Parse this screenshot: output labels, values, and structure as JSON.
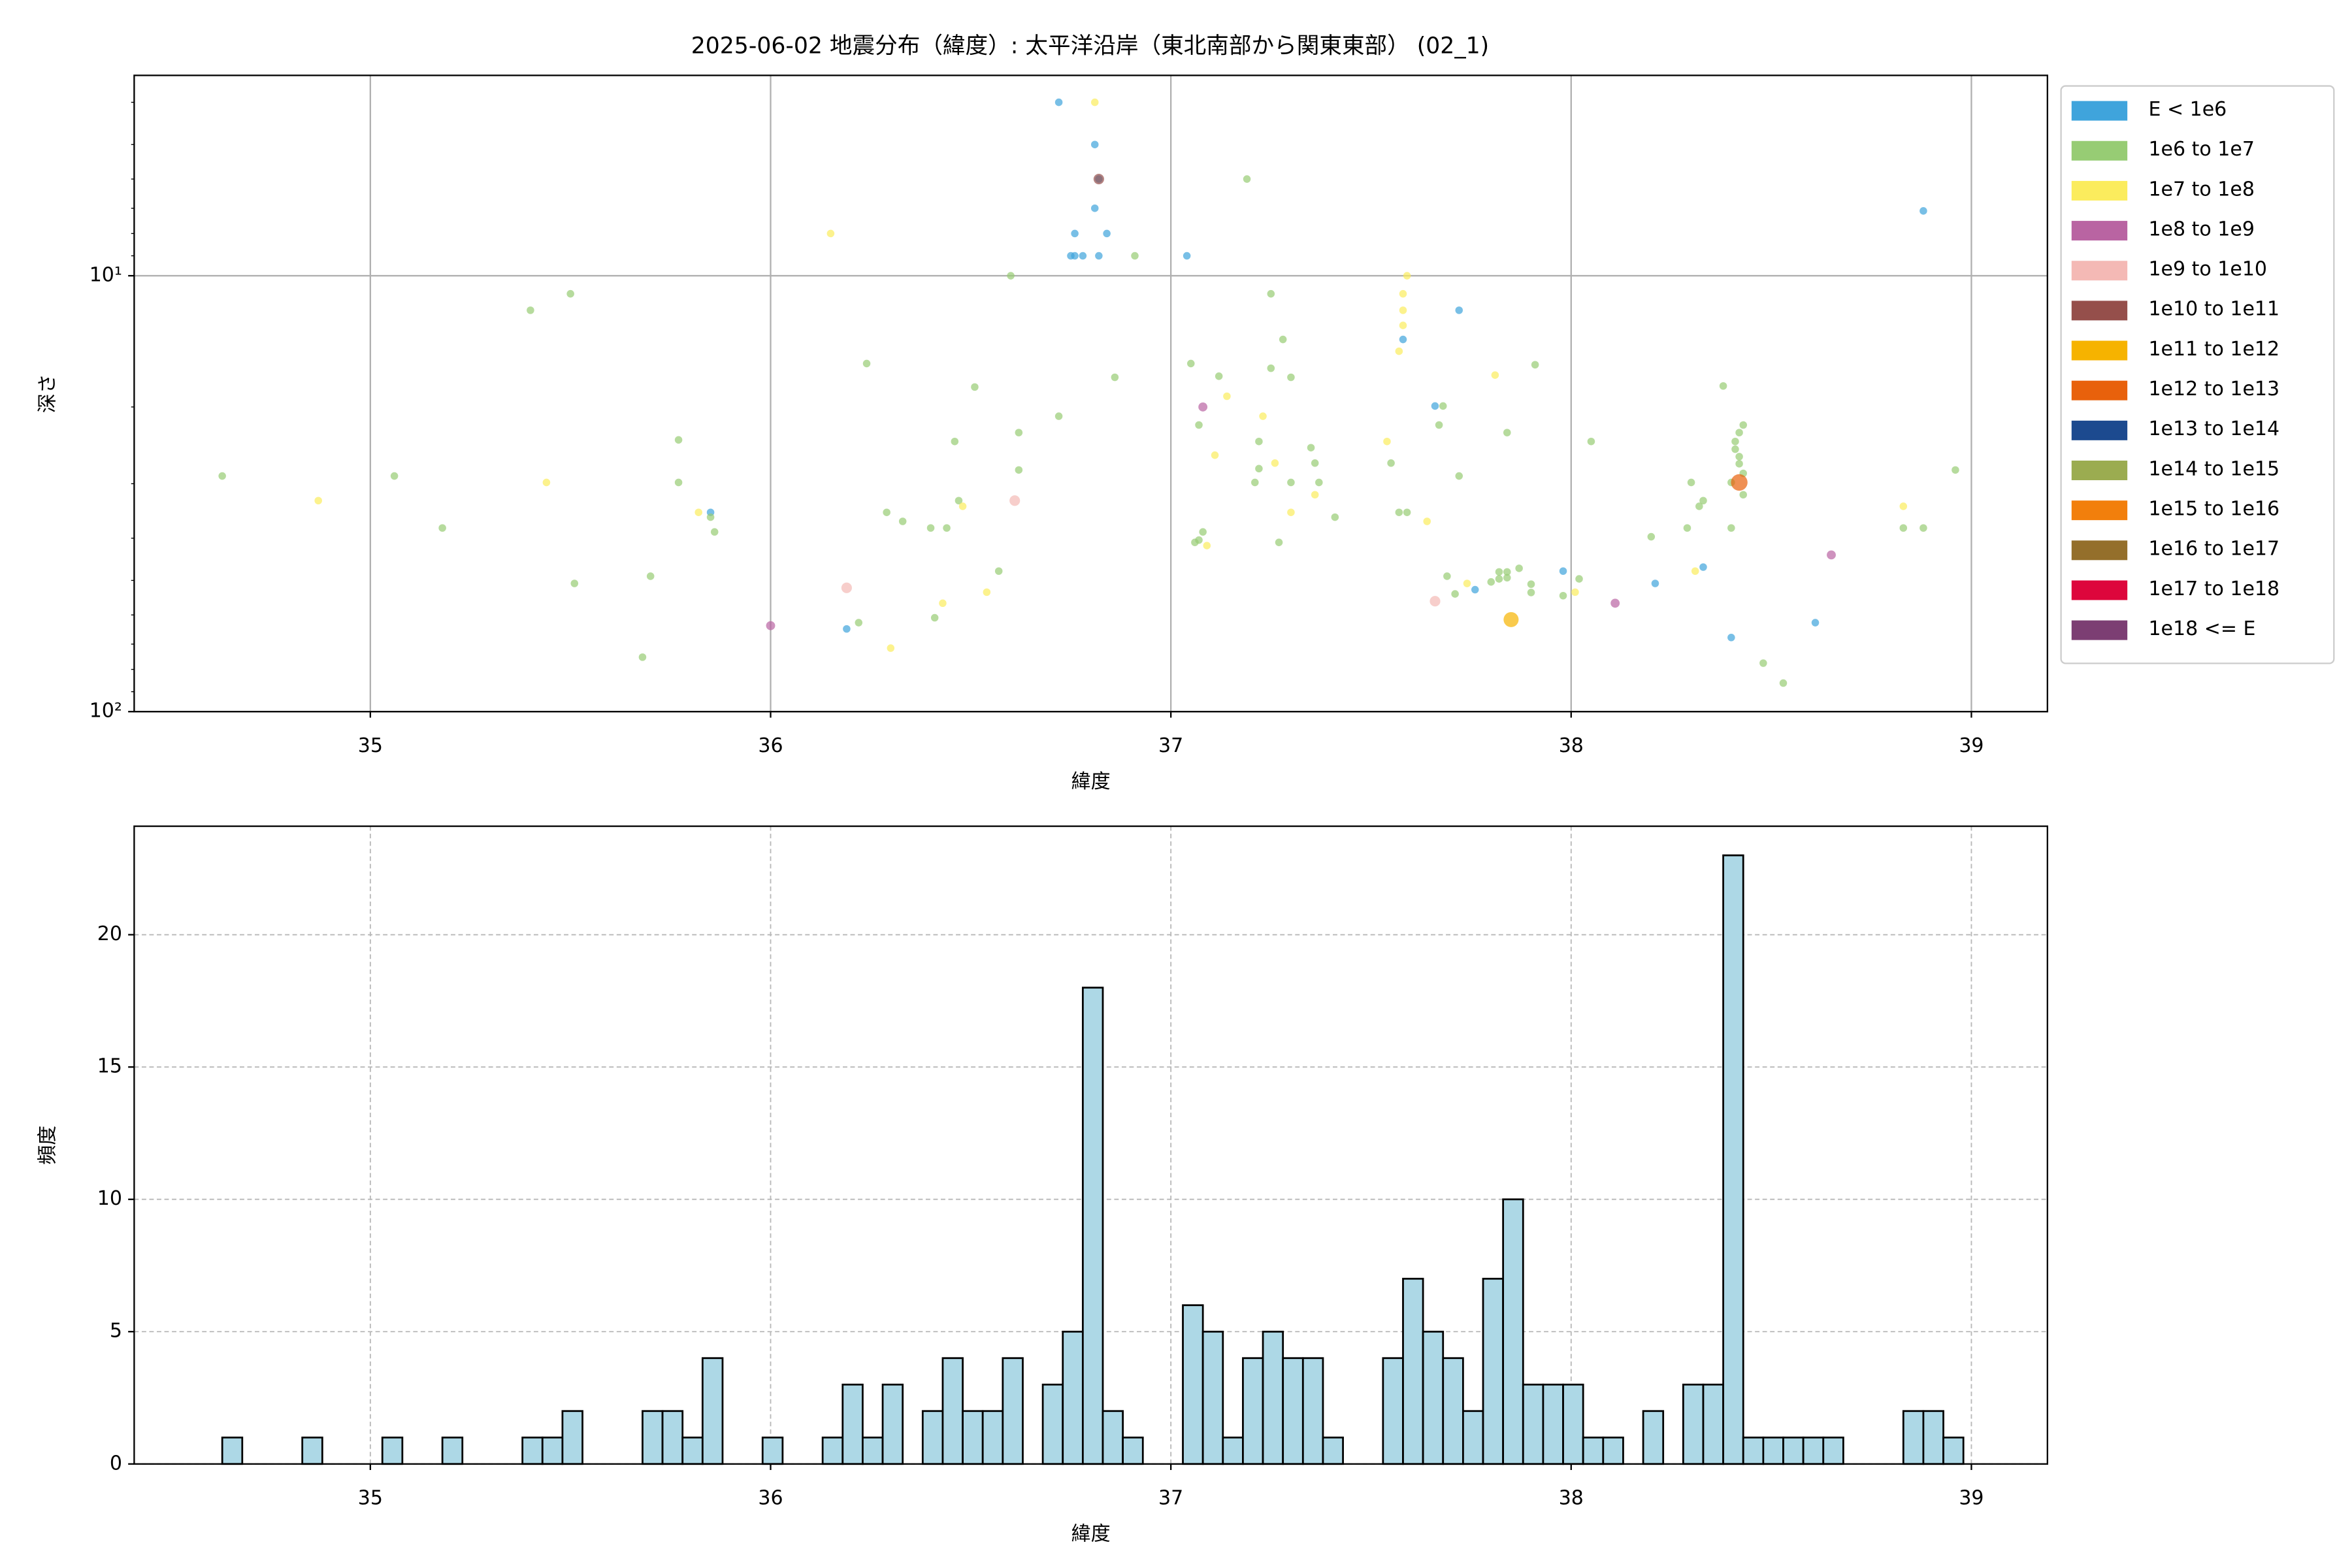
{
  "chart_data": [
    {
      "type": "scatter",
      "title": "2025-06-02 地震分布（緯度）: 太平洋沿岸（東北南部から関東東部） (02_1)",
      "xlabel": "緯度",
      "ylabel": "深さ",
      "xlim": [
        34.41,
        39.19
      ],
      "xticks": [
        35,
        36,
        37,
        38,
        39
      ],
      "ylim": [
        100,
        3.47
      ],
      "log_y": true,
      "yticks": [
        {
          "value": 10,
          "label": "10¹"
        },
        {
          "value": 100,
          "label": "10²"
        }
      ],
      "yminorticks": [
        4,
        5,
        6,
        7,
        8,
        9,
        20,
        30,
        40,
        50,
        60,
        70,
        80,
        90
      ],
      "grid": true,
      "grid_style": "solid",
      "alpha": 0.7,
      "legend": "outside upper right",
      "series": [
        {
          "name": "E < 1e6",
          "color": "#3fa4dc",
          "size": 2.5,
          "x": [
            36.72,
            36.81,
            36.82,
            36.81,
            36.76,
            36.84,
            36.75,
            36.76,
            36.78,
            36.82,
            37.04,
            38.88,
            37.72,
            37.58,
            37.66,
            35.85,
            36.19,
            37.76,
            37.98,
            38.21,
            38.33,
            38.4,
            38.61
          ],
          "values": [
            4.0,
            5.0,
            6.0,
            7.0,
            8.0,
            8.0,
            9.0,
            9.0,
            9.0,
            9.0,
            9.0,
            7.1,
            12.0,
            14.0,
            19.9,
            34.9,
            64.6,
            52.5,
            47.6,
            50.8,
            46.6,
            67.6,
            62.5
          ]
        },
        {
          "name": "1e6 to 1e7",
          "color": "#97cc74",
          "size": 2.5,
          "x": [
            37.19,
            36.6,
            36.91,
            35.5,
            35.4,
            36.24,
            36.86,
            37.05,
            37.12,
            36.51,
            37.25,
            37.28,
            37.25,
            37.3,
            37.91,
            38.38,
            37.68,
            37.67,
            36.72,
            37.07,
            36.62,
            36.46,
            37.84,
            38.05,
            38.43,
            38.42,
            38.41,
            38.41,
            38.42,
            38.42,
            38.43,
            38.4,
            38.43,
            35.77,
            37.22,
            37.35,
            37.36,
            36.62,
            37.55,
            37.22,
            37.72,
            34.63,
            35.06,
            35.77,
            37.21,
            37.3,
            37.37,
            38.3,
            38.96,
            36.47,
            38.33,
            38.32,
            36.29,
            35.85,
            36.33,
            37.41,
            37.57,
            37.59,
            36.4,
            36.44,
            35.18,
            38.29,
            38.4,
            38.83,
            38.88,
            35.86,
            37.08,
            37.07,
            37.06,
            37.27,
            38.2,
            36.57,
            35.7,
            37.69,
            35.51,
            37.71,
            37.8,
            37.82,
            37.84,
            37.87,
            37.82,
            37.84,
            37.9,
            37.9,
            38.02,
            37.98,
            36.41,
            36.22,
            35.68,
            38.48,
            38.53
          ],
          "values": [
            6.0,
            10.0,
            9.0,
            11.0,
            12.0,
            15.9,
            17.1,
            15.9,
            17.0,
            18.0,
            16.3,
            14.0,
            11.0,
            17.1,
            16.0,
            17.9,
            19.9,
            22.0,
            21.0,
            22.0,
            22.9,
            24.0,
            22.9,
            24.0,
            22.0,
            22.9,
            24.0,
            25.0,
            26.0,
            27.0,
            28.4,
            29.8,
            31.8,
            23.8,
            24.0,
            24.8,
            26.9,
            27.9,
            26.9,
            27.7,
            28.8,
            28.8,
            28.8,
            29.8,
            29.8,
            29.8,
            29.8,
            29.8,
            27.9,
            32.8,
            32.8,
            33.8,
            34.9,
            35.8,
            36.6,
            35.8,
            34.9,
            34.9,
            37.9,
            37.9,
            37.9,
            37.9,
            37.9,
            37.9,
            37.9,
            38.7,
            38.7,
            40.4,
            40.9,
            40.9,
            39.7,
            47.6,
            48.9,
            48.9,
            50.8,
            53.7,
            50.4,
            47.8,
            47.8,
            46.9,
            49.6,
            49.3,
            53.3,
            51.0,
            49.6,
            54.2,
            60.9,
            62.5,
            75.0,
            77.4,
            86.0
          ]
        },
        {
          "name": "1e7 to 1e8",
          "color": "#fbec5d",
          "size": 2.5,
          "x": [
            36.81,
            36.15,
            37.59,
            37.58,
            37.58,
            37.58,
            37.57,
            37.81,
            37.14,
            37.23,
            37.54,
            37.11,
            37.26,
            35.44,
            37.36,
            34.87,
            36.48,
            37.3,
            35.82,
            37.64,
            37.09,
            38.83,
            38.31,
            37.74,
            36.54,
            38.01,
            36.43,
            36.3
          ],
          "values": [
            4.0,
            8.0,
            10.0,
            11.0,
            12.0,
            13.0,
            14.9,
            16.9,
            18.9,
            21.0,
            24.0,
            25.8,
            26.9,
            29.8,
            31.8,
            32.8,
            33.8,
            34.9,
            34.9,
            36.6,
            41.6,
            33.8,
            47.6,
            50.8,
            53.2,
            53.2,
            56.4,
            71.5
          ]
        },
        {
          "name": "1e8 to 1e9",
          "color": "#b964a2",
          "size": 3,
          "x": [
            37.08,
            38.65,
            38.11,
            36.0
          ],
          "values": [
            20.0,
            43.7,
            56.4,
            63.5
          ]
        },
        {
          "name": "1e9 to 1e10",
          "color": "#f4b9b5",
          "size": 3.5,
          "x": [
            36.61,
            36.19,
            37.66
          ],
          "values": [
            32.8,
            52.0,
            55.8
          ]
        },
        {
          "name": "1e10 to 1e11",
          "color": "#954f4b",
          "size": 3.5,
          "x": [
            36.82
          ],
          "values": [
            6.0
          ]
        },
        {
          "name": "1e11 to 1e12",
          "color": "#f6b300",
          "size": 5,
          "x": [
            37.85
          ],
          "values": [
            61.5
          ]
        },
        {
          "name": "1e12 to 1e13",
          "color": "#e8610c",
          "size": 5.5,
          "x": [
            38.42
          ],
          "values": [
            29.8
          ]
        },
        {
          "name": "1e13 to 1e14",
          "color": "#1c4a8f",
          "size": 6,
          "x": [],
          "values": []
        },
        {
          "name": "1e14 to 1e15",
          "color": "#9bac50",
          "size": 6,
          "x": [],
          "values": []
        },
        {
          "name": "1e15 to 1e16",
          "color": "#f27f0c",
          "size": 6,
          "x": [],
          "values": []
        },
        {
          "name": "1e16 to 1e17",
          "color": "#946f2b",
          "size": 6,
          "x": [],
          "values": []
        },
        {
          "name": "1e17 to 1e18",
          "color": "#dd063c",
          "size": 6,
          "x": [],
          "values": []
        },
        {
          "name": "1e18 <= E",
          "color": "#7c3e73",
          "size": 6,
          "x": [],
          "values": []
        }
      ]
    },
    {
      "type": "histogram",
      "xlabel": "緯度",
      "ylabel": "頻度",
      "xlim": [
        34.41,
        39.19
      ],
      "xticks": [
        35,
        36,
        37,
        38,
        39
      ],
      "ylim": [
        0,
        24.1
      ],
      "yticks": [
        0,
        5,
        10,
        15,
        20
      ],
      "grid": true,
      "grid_style": "dashed",
      "color": "#add8e6",
      "edgecolor": "#000000",
      "bins": [
        34.63,
        34.68,
        34.73,
        34.78,
        34.83,
        34.88,
        34.93,
        34.98,
        35.03,
        35.08,
        35.13,
        35.18,
        35.23,
        35.28,
        35.33,
        35.38,
        35.43,
        35.48,
        35.53,
        35.58,
        35.63,
        35.68,
        35.73,
        35.78,
        35.83,
        35.88,
        35.93,
        35.98,
        36.03,
        36.08,
        36.13,
        36.18,
        36.23,
        36.28,
        36.33,
        36.38,
        36.43,
        36.48,
        36.53,
        36.58,
        36.63,
        36.68,
        36.73,
        36.78,
        36.83,
        36.88,
        36.93,
        36.98,
        37.03,
        37.08,
        37.13,
        37.18,
        37.23,
        37.28,
        37.33,
        37.38,
        37.43,
        37.48,
        37.53,
        37.58,
        37.63,
        37.68,
        37.73,
        37.78,
        37.83,
        37.88,
        37.93,
        37.98,
        38.03,
        38.08,
        38.13,
        38.18,
        38.23,
        38.28,
        38.33,
        38.38,
        38.43,
        38.48,
        38.53,
        38.58,
        38.63,
        38.68,
        38.73,
        38.78,
        38.83,
        38.88,
        38.93,
        38.98
      ],
      "values": [
        1,
        0,
        0,
        0,
        1,
        0,
        0,
        0,
        1,
        0,
        0,
        1,
        0,
        0,
        0,
        1,
        1,
        2,
        0,
        0,
        0,
        2,
        2,
        1,
        4,
        0,
        0,
        1,
        0,
        0,
        1,
        3,
        1,
        3,
        0,
        2,
        4,
        2,
        2,
        4,
        0,
        3,
        5,
        18,
        2,
        1,
        0,
        0,
        6,
        5,
        1,
        4,
        5,
        4,
        4,
        1,
        0,
        0,
        4,
        7,
        5,
        4,
        2,
        7,
        10,
        3,
        3,
        3,
        1,
        1,
        0,
        2,
        0,
        3,
        3,
        23,
        1,
        1,
        1,
        1,
        1,
        0,
        0,
        0,
        2,
        2,
        1
      ]
    }
  ]
}
